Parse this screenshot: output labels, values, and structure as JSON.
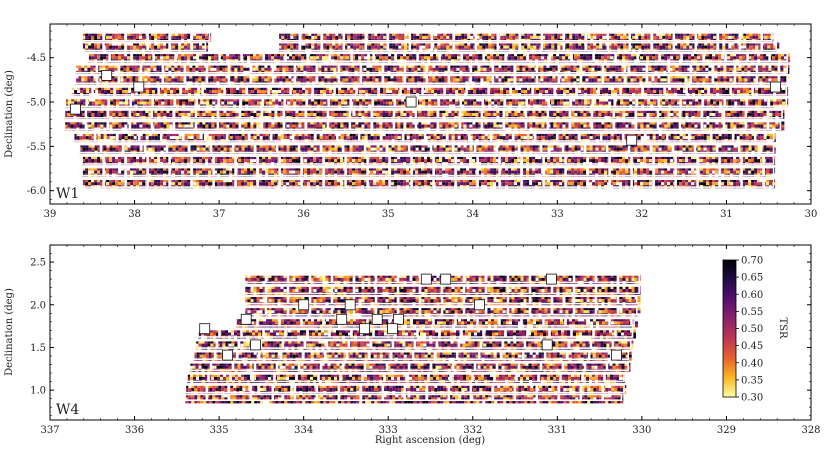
{
  "chart_data": [
    {
      "type": "heatmap",
      "panel_label": "W1",
      "xlabel": "",
      "ylabel": "Declination (deg)",
      "xlim": [
        39,
        30
      ],
      "ylim": [
        -6.15,
        -4.12
      ],
      "x_ticks": [
        39,
        38,
        37,
        36,
        35,
        34,
        33,
        32,
        31,
        30
      ],
      "y_ticks": [
        -4.5,
        -5.0,
        -5.5,
        -6.0
      ],
      "y_tick_labels": [
        "-4.5",
        "-5.0",
        "-5.5",
        "-6.0"
      ],
      "value_range": [
        0.3,
        0.7
      ],
      "tile_rows": [
        {
          "dec": [
            -4.32,
            -4.22
          ],
          "ra_segments": [
            [
              38.62,
              37.1
            ],
            [
              36.3,
              30.45
            ]
          ]
        },
        {
          "dec": [
            -4.43,
            -4.33
          ],
          "ra_segments": [
            [
              38.62,
              37.15
            ],
            [
              36.3,
              30.4
            ]
          ]
        },
        {
          "dec": [
            -4.55,
            -4.45
          ],
          "ra_segments": [
            [
              38.55,
              30.27
            ]
          ]
        },
        {
          "dec": [
            -4.68,
            -4.58
          ],
          "ra_segments": [
            [
              38.7,
              30.27
            ]
          ]
        },
        {
          "dec": [
            -4.8,
            -4.7
          ],
          "ra_segments": [
            [
              38.7,
              30.27
            ]
          ]
        },
        {
          "dec": [
            -4.93,
            -4.83
          ],
          "ra_segments": [
            [
              38.75,
              30.28
            ]
          ]
        },
        {
          "dec": [
            -5.06,
            -4.96
          ],
          "ra_segments": [
            [
              38.82,
              30.28
            ]
          ]
        },
        {
          "dec": [
            -5.19,
            -5.09
          ],
          "ra_segments": [
            [
              38.83,
              30.33
            ]
          ]
        },
        {
          "dec": [
            -5.32,
            -5.22
          ],
          "ra_segments": [
            [
              38.83,
              30.35
            ]
          ]
        },
        {
          "dec": [
            -5.45,
            -5.35
          ],
          "ra_segments": [
            [
              38.72,
              30.43
            ]
          ]
        },
        {
          "dec": [
            -5.58,
            -5.48
          ],
          "ra_segments": [
            [
              38.65,
              30.43
            ]
          ]
        },
        {
          "dec": [
            -5.71,
            -5.61
          ],
          "ra_segments": [
            [
              38.62,
              30.43
            ]
          ]
        },
        {
          "dec": [
            -5.84,
            -5.74
          ],
          "ra_segments": [
            [
              38.62,
              30.43
            ]
          ]
        },
        {
          "dec": [
            -5.97,
            -5.87
          ],
          "ra_segments": [
            [
              38.62,
              30.43
            ]
          ]
        }
      ],
      "masked_squares": [
        {
          "ra": 38.33,
          "dec": -4.7
        },
        {
          "ra": 37.95,
          "dec": -4.83
        },
        {
          "ra": 38.7,
          "dec": -5.08
        },
        {
          "ra": 34.73,
          "dec": -5.0
        },
        {
          "ra": 32.12,
          "dec": -5.43
        },
        {
          "ra": 30.42,
          "dec": -4.83
        }
      ]
    },
    {
      "type": "heatmap",
      "panel_label": "W4",
      "xlabel": "Right ascension (deg)",
      "ylabel": "Declination (deg)",
      "xlim": [
        337,
        328
      ],
      "ylim": [
        0.65,
        2.7
      ],
      "x_ticks": [
        337,
        336,
        335,
        334,
        333,
        332,
        331,
        330,
        329,
        328
      ],
      "y_ticks": [
        1.0,
        1.5,
        2.0,
        2.5
      ],
      "y_tick_labels": [
        "1.0",
        "1.5",
        "2.0",
        "2.5"
      ],
      "value_range": [
        0.3,
        0.7
      ],
      "tile_rows": [
        {
          "dec": [
            2.25,
            2.35
          ],
          "ra_segments": [
            [
              334.7,
              330.02
            ]
          ]
        },
        {
          "dec": [
            2.12,
            2.22
          ],
          "ra_segments": [
            [
              334.7,
              330.02
            ]
          ]
        },
        {
          "dec": [
            2.0,
            2.1
          ],
          "ra_segments": [
            [
              334.7,
              330.05
            ]
          ]
        },
        {
          "dec": [
            1.87,
            1.97
          ],
          "ra_segments": [
            [
              334.7,
              330.05
            ]
          ]
        },
        {
          "dec": [
            1.74,
            1.84
          ],
          "ra_segments": [
            [
              334.8,
              330.08
            ]
          ]
        },
        {
          "dec": [
            1.61,
            1.71
          ],
          "ra_segments": [
            [
              335.25,
              330.1
            ]
          ]
        },
        {
          "dec": [
            1.48,
            1.58
          ],
          "ra_segments": [
            [
              335.28,
              330.12
            ]
          ]
        },
        {
          "dec": [
            1.35,
            1.45
          ],
          "ra_segments": [
            [
              335.3,
              330.15
            ]
          ]
        },
        {
          "dec": [
            1.22,
            1.32
          ],
          "ra_segments": [
            [
              335.35,
              330.15
            ]
          ]
        },
        {
          "dec": [
            1.09,
            1.19
          ],
          "ra_segments": [
            [
              335.38,
              330.2
            ]
          ]
        },
        {
          "dec": [
            0.96,
            1.06
          ],
          "ra_segments": [
            [
              335.4,
              330.2
            ]
          ]
        },
        {
          "dec": [
            0.87,
            0.95
          ],
          "ra_segments": [
            [
              335.4,
              330.23
            ]
          ]
        }
      ],
      "masked_squares": [
        {
          "ra": 332.55,
          "dec": 2.3
        },
        {
          "ra": 332.32,
          "dec": 2.3
        },
        {
          "ra": 331.07,
          "dec": 2.3
        },
        {
          "ra": 334.0,
          "dec": 2.0
        },
        {
          "ra": 333.45,
          "dec": 2.0
        },
        {
          "ra": 331.92,
          "dec": 2.0
        },
        {
          "ra": 334.68,
          "dec": 1.83
        },
        {
          "ra": 333.55,
          "dec": 1.83
        },
        {
          "ra": 333.13,
          "dec": 1.83
        },
        {
          "ra": 332.88,
          "dec": 1.83
        },
        {
          "ra": 335.17,
          "dec": 1.72
        },
        {
          "ra": 333.28,
          "dec": 1.72
        },
        {
          "ra": 332.95,
          "dec": 1.72
        },
        {
          "ra": 334.57,
          "dec": 1.53
        },
        {
          "ra": 331.12,
          "dec": 1.53
        },
        {
          "ra": 334.9,
          "dec": 1.41
        },
        {
          "ra": 330.3,
          "dec": 1.41
        }
      ]
    }
  ],
  "colorbar": {
    "label": "TSR",
    "min": 0.3,
    "max": 0.7,
    "ticks": [
      "0.70",
      "0.65",
      "0.60",
      "0.55",
      "0.50",
      "0.45",
      "0.40",
      "0.35",
      "0.30"
    ],
    "colors": [
      "#fcffa4",
      "#f9b621",
      "#e8602e",
      "#bc3754",
      "#8a226a",
      "#56106e",
      "#200c46",
      "#000004"
    ]
  }
}
